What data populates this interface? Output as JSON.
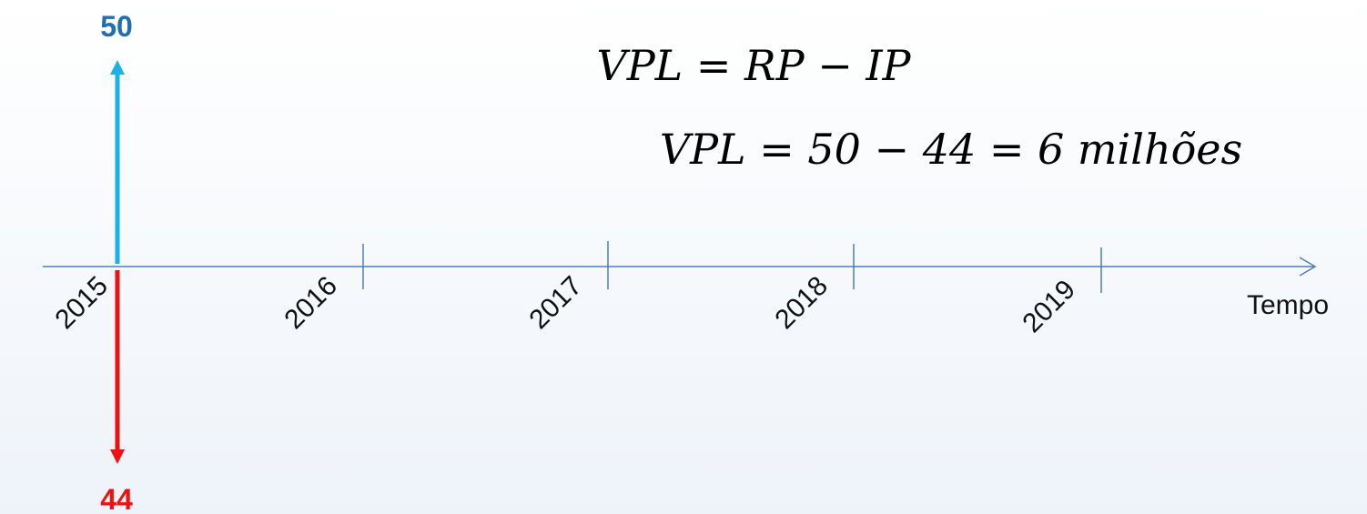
{
  "formulas": [
    "VPL = RP − IP",
    "VPL = 50 − 44 = 6 milhões"
  ],
  "timeline": {
    "years": [
      "2015",
      "2016",
      "2017",
      "2018",
      "2019"
    ],
    "axis_label": "Tempo"
  },
  "inflow": {
    "label": "50"
  },
  "outflow": {
    "label": "44"
  }
}
